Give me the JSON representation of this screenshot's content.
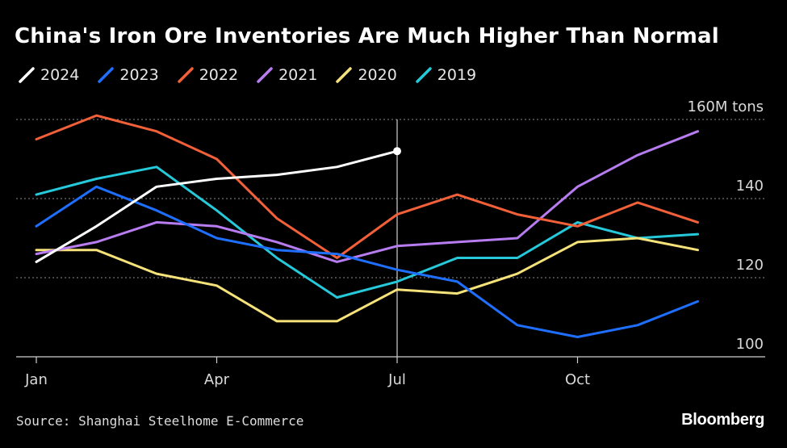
{
  "title": "China's Iron Ore Inventories Are Much Higher Than Normal",
  "source": "Source: Shanghai Steelhome E-Commerce",
  "brand": "Bloomberg",
  "chart_data": {
    "type": "line",
    "title": "China's Iron Ore Inventories Are Much Higher Than Normal",
    "unit_label": "160M tons",
    "ylim": [
      100,
      160
    ],
    "yticks": [
      {
        "value": 160,
        "label": "160M tons"
      },
      {
        "value": 140,
        "label": "140"
      },
      {
        "value": 120,
        "label": "120"
      },
      {
        "value": 100,
        "label": "100"
      }
    ],
    "x_months": [
      1,
      2,
      3,
      4,
      5,
      6,
      7,
      8,
      9,
      10,
      11,
      12
    ],
    "xticks": [
      {
        "month": 1,
        "label": "Jan"
      },
      {
        "month": 4,
        "label": "Apr"
      },
      {
        "month": 7,
        "label": "Jul"
      },
      {
        "month": 10,
        "label": "Oct"
      }
    ],
    "marker_month": 7,
    "grid": true,
    "series": [
      {
        "name": "2024",
        "color": "#ffffff",
        "values": [
          124,
          133,
          143,
          145,
          146,
          148,
          152
        ]
      },
      {
        "name": "2023",
        "color": "#1f6fff",
        "values": [
          133,
          143,
          137,
          130,
          127,
          126,
          122,
          119,
          108,
          105,
          108,
          114
        ]
      },
      {
        "name": "2022",
        "color": "#f2603a",
        "values": [
          155,
          161,
          157,
          150,
          135,
          125,
          136,
          141,
          136,
          133,
          139,
          134
        ]
      },
      {
        "name": "2021",
        "color": "#b77cf0",
        "values": [
          126,
          129,
          134,
          133,
          129,
          124,
          128,
          129,
          130,
          143,
          151,
          157
        ]
      },
      {
        "name": "2020",
        "color": "#f6e27a",
        "values": [
          127,
          127,
          121,
          118,
          109,
          109,
          117,
          116,
          121,
          129,
          130,
          127
        ]
      },
      {
        "name": "2019",
        "color": "#25c9d9",
        "values": [
          141,
          145,
          148,
          137,
          125,
          115,
          119,
          125,
          125,
          134,
          130,
          131
        ]
      }
    ]
  }
}
